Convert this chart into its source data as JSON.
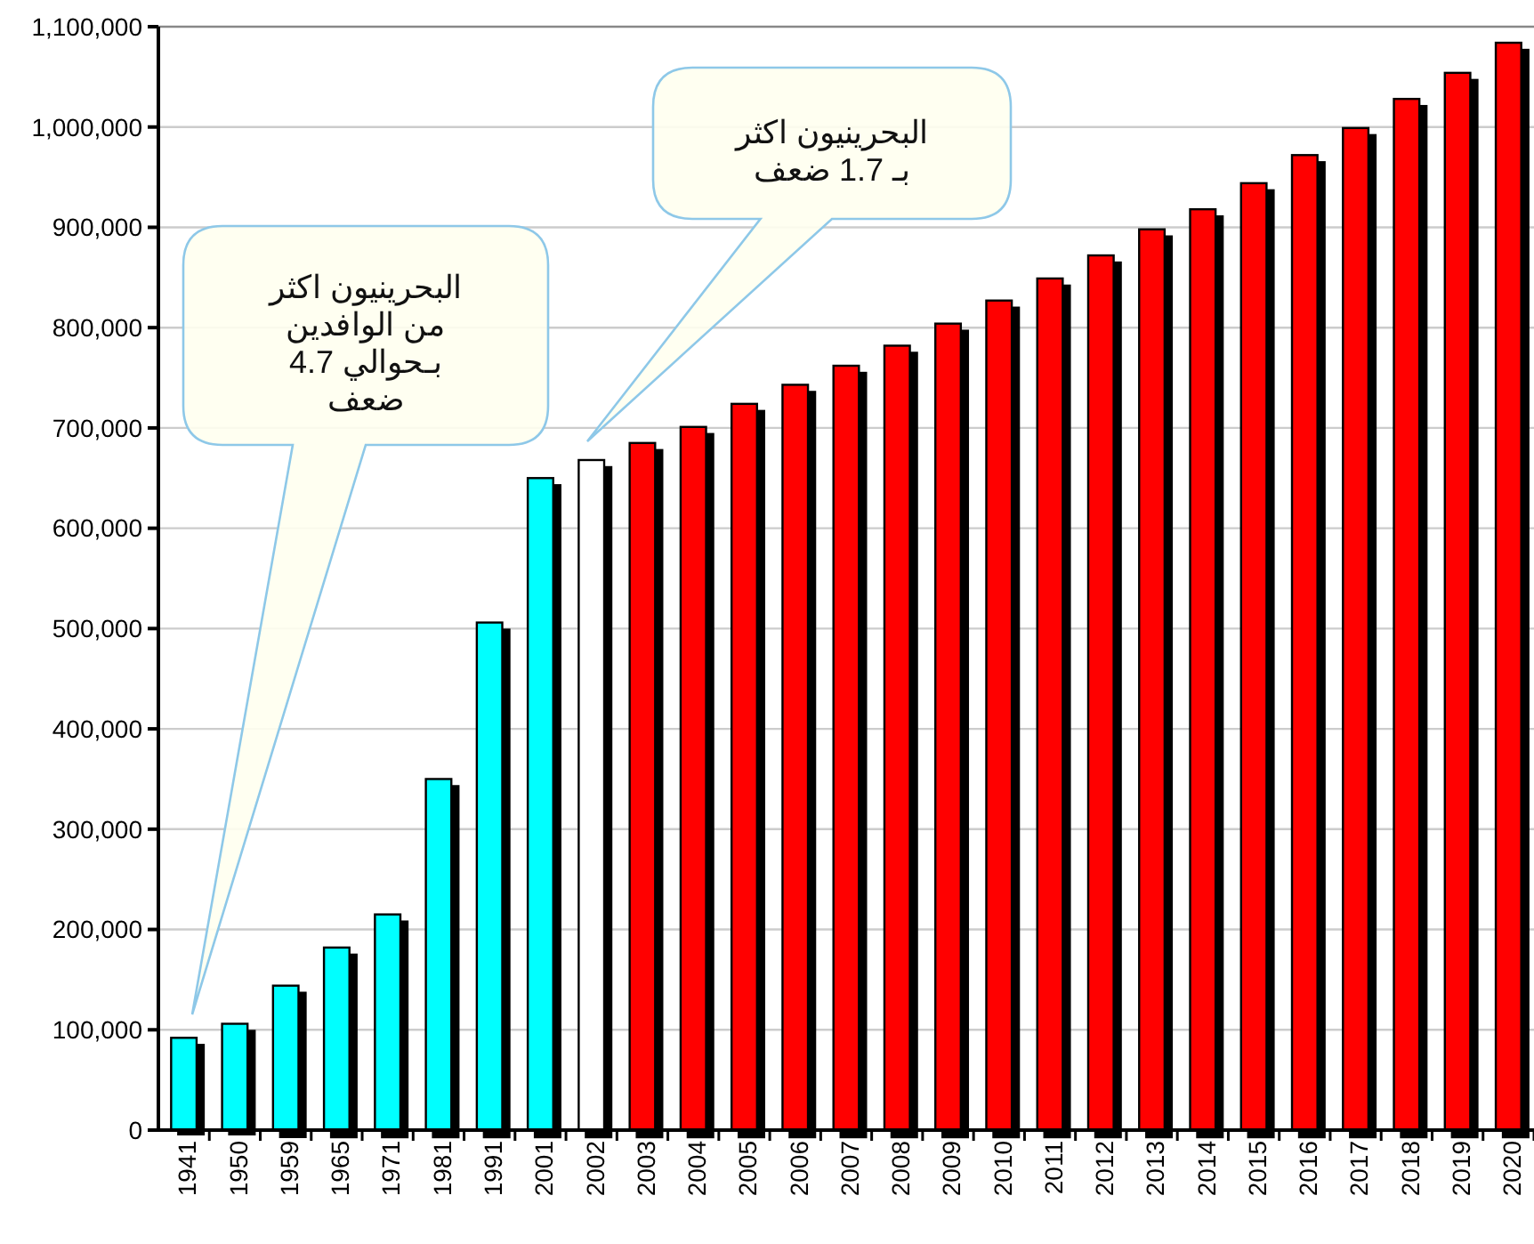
{
  "chart_data": {
    "type": "bar",
    "categories": [
      "1941",
      "1950",
      "1959",
      "1965",
      "1971",
      "1981",
      "1991",
      "2001",
      "2002",
      "2003",
      "2004",
      "2005",
      "2006",
      "2007",
      "2008",
      "2009",
      "2010",
      "2011",
      "2012",
      "2013",
      "2014",
      "2015",
      "2016",
      "2017",
      "2018",
      "2019",
      "2020"
    ],
    "values": [
      92000,
      106000,
      144000,
      182000,
      215000,
      350000,
      506000,
      650000,
      668000,
      685000,
      701000,
      724000,
      743000,
      762000,
      782000,
      804000,
      827000,
      849000,
      872000,
      898000,
      918000,
      944000,
      972000,
      999000,
      1028000,
      1054000,
      1084000
    ],
    "colors": [
      "#00ffff",
      "#00ffff",
      "#00ffff",
      "#00ffff",
      "#00ffff",
      "#00ffff",
      "#00ffff",
      "#00ffff",
      "#ffffff",
      "#ff0000",
      "#ff0000",
      "#ff0000",
      "#ff0000",
      "#ff0000",
      "#ff0000",
      "#ff0000",
      "#ff0000",
      "#ff0000",
      "#ff0000",
      "#ff0000",
      "#ff0000",
      "#ff0000",
      "#ff0000",
      "#ff0000",
      "#ff0000",
      "#ff0000",
      "#ff0000"
    ],
    "ylim": [
      0,
      1100000
    ],
    "yticks": [
      0,
      {
        "value": 100000,
        "label": "100,000"
      },
      {
        "value": 200000,
        "label": "200,000"
      },
      {
        "value": 300000,
        "label": "300,000"
      },
      {
        "value": 400000,
        "label": "400,000"
      },
      {
        "value": 500000,
        "label": "500,000"
      },
      {
        "value": 600000,
        "label": "600,000"
      },
      {
        "value": 700000,
        "label": "700,000"
      },
      {
        "value": 800000,
        "label": "800,000"
      },
      {
        "value": 900000,
        "label": "900,000"
      },
      {
        "value": 1000000,
        "label": "1,000,000"
      },
      {
        "value": 1100000,
        "label": "1,100,000"
      }
    ],
    "grid": "y",
    "annotations": [
      "البحرينيون اكثر\nمن الوافدين\nبـحوالي 4.7\nضعف",
      "البحرينيون اكثر\nبـ 1.7 ضعف"
    ]
  }
}
